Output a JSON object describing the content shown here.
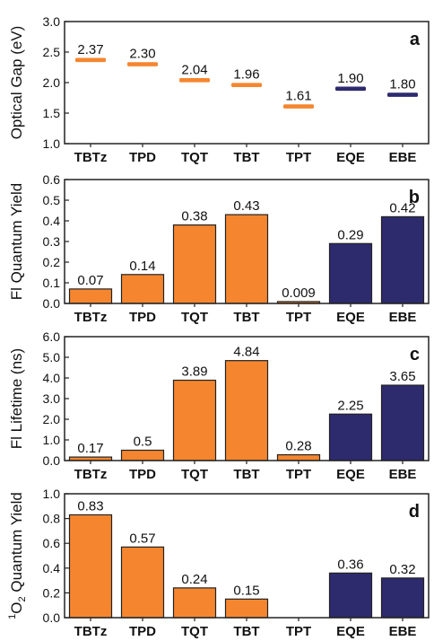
{
  "colors": {
    "orange": "#F5862F",
    "navy": "#2D2A6E",
    "axis": "#222222"
  },
  "chart_data": [
    {
      "panel": "a",
      "type": "scatter",
      "marker": "horizontal-dash",
      "ylabel": "Optical Gap (eV)",
      "ylim": [
        1.0,
        3.0
      ],
      "yticks": [
        "1.0",
        "1.5",
        "2.0",
        "2.5",
        "3.0"
      ],
      "ytick_values": [
        1.0,
        1.5,
        2.0,
        2.5,
        3.0
      ],
      "categories": [
        "TBTz",
        "TPD",
        "TQT",
        "TBT",
        "TPT",
        "EQE",
        "EBE"
      ],
      "values": [
        2.37,
        2.3,
        2.04,
        1.96,
        1.61,
        1.9,
        1.8
      ],
      "labels": [
        "2.37",
        "2.30",
        "2.04",
        "1.96",
        "1.61",
        "1.90",
        "1.80"
      ],
      "color_keys": [
        "orange",
        "orange",
        "orange",
        "orange",
        "orange",
        "navy",
        "navy"
      ]
    },
    {
      "panel": "b",
      "type": "bar",
      "ylabel": "Fl Quantum Yield",
      "ylim": [
        0.0,
        0.6
      ],
      "yticks": [
        "0.0",
        "0.1",
        "0.2",
        "0.3",
        "0.4",
        "0.5",
        "0.6"
      ],
      "ytick_values": [
        0.0,
        0.1,
        0.2,
        0.3,
        0.4,
        0.5,
        0.6
      ],
      "categories": [
        "TBTz",
        "TPD",
        "TQT",
        "TBT",
        "TPT",
        "EQE",
        "EBE"
      ],
      "values": [
        0.07,
        0.14,
        0.38,
        0.43,
        0.009,
        0.29,
        0.42
      ],
      "labels": [
        "0.07",
        "0.14",
        "0.38",
        "0.43",
        "0.009",
        "0.29",
        "0.42"
      ],
      "color_keys": [
        "orange",
        "orange",
        "orange",
        "orange",
        "orange",
        "navy",
        "navy"
      ]
    },
    {
      "panel": "c",
      "type": "bar",
      "ylabel": "Fl Lifetime (ns)",
      "ylim": [
        0.0,
        6.0
      ],
      "yticks": [
        "0.0",
        "1.0",
        "2.0",
        "3.0",
        "4.0",
        "5.0",
        "6.0"
      ],
      "ytick_values": [
        0.0,
        1.0,
        2.0,
        3.0,
        4.0,
        5.0,
        6.0
      ],
      "categories": [
        "TBTz",
        "TPD",
        "TQT",
        "TBT",
        "TPT",
        "EQE",
        "EBE"
      ],
      "values": [
        0.17,
        0.5,
        3.89,
        4.84,
        0.28,
        2.25,
        3.65
      ],
      "labels": [
        "0.17",
        "0.5",
        "3.89",
        "4.84",
        "0.28",
        "2.25",
        "3.65"
      ],
      "color_keys": [
        "orange",
        "orange",
        "orange",
        "orange",
        "orange",
        "navy",
        "navy"
      ]
    },
    {
      "panel": "d",
      "type": "bar",
      "ylabel_sup": "1",
      "ylabel_main": "O",
      "ylabel_sub": "2",
      "ylabel_rest": " Quantum Yield",
      "ylim": [
        0.0,
        1.0
      ],
      "yticks": [
        "0.0",
        "0.2",
        "0.4",
        "0.6",
        "0.8",
        "1.0"
      ],
      "ytick_values": [
        0.0,
        0.2,
        0.4,
        0.6,
        0.8,
        1.0
      ],
      "categories": [
        "TBTz",
        "TPD",
        "TQT",
        "TBT",
        "TPT",
        "EQE",
        "EBE"
      ],
      "values": [
        0.83,
        0.57,
        0.24,
        0.15,
        null,
        0.36,
        0.32
      ],
      "labels": [
        "0.83",
        "0.57",
        "0.24",
        "0.15",
        "",
        "0.36",
        "0.32"
      ],
      "color_keys": [
        "orange",
        "orange",
        "orange",
        "orange",
        "orange",
        "navy",
        "navy"
      ]
    }
  ]
}
